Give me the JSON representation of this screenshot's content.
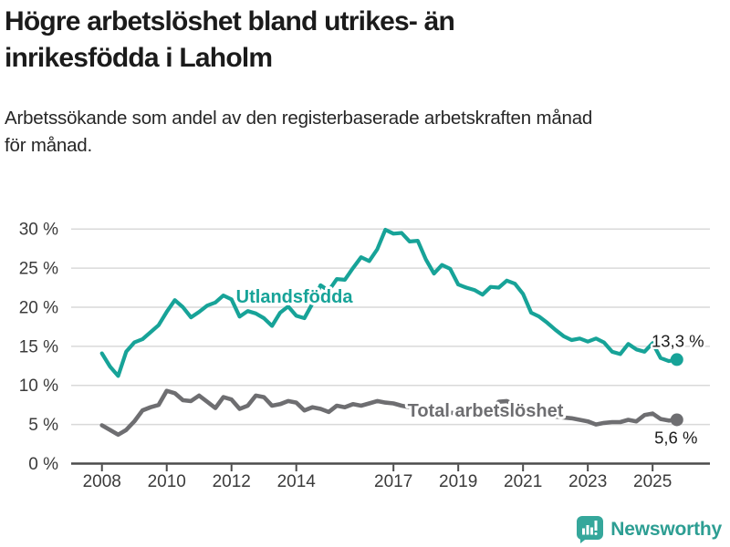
{
  "header": {
    "title_lines": [
      "Högre arbetslöshet bland utrikes- än",
      "inrikesfödda i Laholm"
    ],
    "subtitle_lines": [
      "Arbetssökande som andel av den registerbaserade arbetskraften månad",
      "för månad."
    ]
  },
  "footer": {
    "brand": "Newsworthy",
    "brand_color": "#2d9e93",
    "logo_icon": "bar-chart-speech-bubble"
  },
  "chart_data": {
    "type": "line",
    "title": "Högre arbetslöshet bland utrikes- än inrikesfödda i Laholm",
    "subtitle": "Arbetssökande som andel av den registerbaserade arbetskraften månad för månad.",
    "grid": true,
    "legend": "inline-labels",
    "axis_color": "#4b4b4b",
    "grid_color": "#d9d9d9",
    "tick_label_color": "#3b3b3b",
    "annotation_color": "#1c1c1c",
    "x_axis": {
      "range": [
        2007.05,
        2026.77
      ],
      "tick_years": [
        2008,
        2010,
        2012,
        2014,
        2017,
        2019,
        2021,
        2023,
        2025
      ],
      "tick_labels": [
        "2008",
        "2010",
        "2012",
        "2014",
        "2017",
        "2019",
        "2021",
        "2023",
        "2025"
      ]
    },
    "y_axis": {
      "range": [
        0,
        31.8
      ],
      "unit": "%",
      "tick_values": [
        0,
        5,
        10,
        15,
        20,
        25,
        30
      ],
      "tick_labels": [
        "0 %",
        "5 %",
        "10 %",
        "15 %",
        "20 %",
        "25 %",
        "30 %"
      ]
    },
    "series": [
      {
        "name": "Utlandsfödda",
        "color": "#17a398",
        "stroke_width": 4.2,
        "label_at": {
          "year": 2013.94,
          "value": 21.3
        },
        "end_dot": true,
        "end_value": 13.3,
        "end_label": "13,3 %",
        "end_label_offset": [
          1,
          -14
        ],
        "points": [
          [
            2008,
            14.1
          ],
          [
            2008.25,
            12.4
          ],
          [
            2008.5,
            11.2
          ],
          [
            2008.75,
            14.3
          ],
          [
            2009,
            15.5
          ],
          [
            2009.25,
            15.9
          ],
          [
            2009.5,
            16.8
          ],
          [
            2009.75,
            17.7
          ],
          [
            2010,
            19.4
          ],
          [
            2010.25,
            20.9
          ],
          [
            2010.5,
            20.0
          ],
          [
            2010.75,
            18.7
          ],
          [
            2011,
            19.4
          ],
          [
            2011.25,
            20.2
          ],
          [
            2011.5,
            20.6
          ],
          [
            2011.75,
            21.5
          ],
          [
            2012,
            21.0
          ],
          [
            2012.25,
            18.8
          ],
          [
            2012.5,
            19.5
          ],
          [
            2012.75,
            19.2
          ],
          [
            2013,
            18.6
          ],
          [
            2013.25,
            17.6
          ],
          [
            2013.5,
            19.3
          ],
          [
            2013.75,
            20.1
          ],
          [
            2014,
            18.9
          ],
          [
            2014.25,
            18.6
          ],
          [
            2014.5,
            20.5
          ],
          [
            2014.75,
            22.8
          ],
          [
            2015,
            22.1
          ],
          [
            2015.25,
            23.6
          ],
          [
            2015.5,
            23.5
          ],
          [
            2015.75,
            25.0
          ],
          [
            2016,
            26.4
          ],
          [
            2016.25,
            25.9
          ],
          [
            2016.5,
            27.4
          ],
          [
            2016.75,
            29.9
          ],
          [
            2017,
            29.4
          ],
          [
            2017.25,
            29.5
          ],
          [
            2017.5,
            28.4
          ],
          [
            2017.75,
            28.5
          ],
          [
            2018,
            26.1
          ],
          [
            2018.25,
            24.3
          ],
          [
            2018.5,
            25.4
          ],
          [
            2018.75,
            24.9
          ],
          [
            2019,
            22.9
          ],
          [
            2019.25,
            22.5
          ],
          [
            2019.5,
            22.2
          ],
          [
            2019.75,
            21.6
          ],
          [
            2020,
            22.6
          ],
          [
            2020.25,
            22.5
          ],
          [
            2020.5,
            23.4
          ],
          [
            2020.75,
            23.0
          ],
          [
            2021,
            21.7
          ],
          [
            2021.25,
            19.3
          ],
          [
            2021.5,
            18.8
          ],
          [
            2021.75,
            18.0
          ],
          [
            2022,
            17.1
          ],
          [
            2022.25,
            16.3
          ],
          [
            2022.5,
            15.8
          ],
          [
            2022.75,
            16.0
          ],
          [
            2023,
            15.6
          ],
          [
            2023.25,
            16.0
          ],
          [
            2023.5,
            15.5
          ],
          [
            2023.75,
            14.3
          ],
          [
            2024,
            14.0
          ],
          [
            2024.25,
            15.3
          ],
          [
            2024.5,
            14.6
          ],
          [
            2024.75,
            14.3
          ],
          [
            2025,
            15.4
          ],
          [
            2025.25,
            13.5
          ],
          [
            2025.5,
            13.1
          ],
          [
            2025.75,
            13.3
          ]
        ]
      },
      {
        "name": "Total arbetslöshet",
        "color": "#6e6e71",
        "stroke_width": 4.6,
        "label_at": {
          "year": 2019.84,
          "value": 6.7
        },
        "end_dot": true,
        "end_value": 5.6,
        "end_label": "5,6 %",
        "end_label_offset": [
          -1,
          26
        ],
        "points": [
          [
            2008,
            4.9
          ],
          [
            2008.25,
            4.3
          ],
          [
            2008.5,
            3.7
          ],
          [
            2008.75,
            4.3
          ],
          [
            2009,
            5.4
          ],
          [
            2009.25,
            6.8
          ],
          [
            2009.5,
            7.2
          ],
          [
            2009.75,
            7.5
          ],
          [
            2010,
            9.3
          ],
          [
            2010.25,
            9.0
          ],
          [
            2010.5,
            8.1
          ],
          [
            2010.75,
            8.0
          ],
          [
            2011,
            8.7
          ],
          [
            2011.25,
            7.9
          ],
          [
            2011.5,
            7.1
          ],
          [
            2011.75,
            8.5
          ],
          [
            2012,
            8.2
          ],
          [
            2012.25,
            7.0
          ],
          [
            2012.5,
            7.4
          ],
          [
            2012.75,
            8.7
          ],
          [
            2013,
            8.5
          ],
          [
            2013.25,
            7.4
          ],
          [
            2013.5,
            7.6
          ],
          [
            2013.75,
            8.0
          ],
          [
            2014,
            7.8
          ],
          [
            2014.25,
            6.8
          ],
          [
            2014.5,
            7.2
          ],
          [
            2014.75,
            7.0
          ],
          [
            2015,
            6.6
          ],
          [
            2015.25,
            7.4
          ],
          [
            2015.5,
            7.2
          ],
          [
            2015.75,
            7.6
          ],
          [
            2016,
            7.4
          ],
          [
            2016.25,
            7.7
          ],
          [
            2016.5,
            8.0
          ],
          [
            2016.75,
            7.8
          ],
          [
            2017,
            7.7
          ],
          [
            2017.25,
            7.4
          ],
          [
            2017.5,
            7.2
          ],
          [
            2017.75,
            7.1
          ],
          [
            2018,
            6.9
          ],
          [
            2018.25,
            6.8
          ],
          [
            2018.5,
            6.7
          ],
          [
            2018.75,
            6.5
          ],
          [
            2019,
            6.4
          ],
          [
            2019.25,
            6.3
          ],
          [
            2019.5,
            6.4
          ],
          [
            2019.75,
            6.6
          ],
          [
            2020,
            7.0
          ],
          [
            2020.25,
            7.9
          ],
          [
            2020.5,
            8.0
          ],
          [
            2020.75,
            7.5
          ],
          [
            2021,
            7.1
          ],
          [
            2021.25,
            6.8
          ],
          [
            2021.5,
            6.4
          ],
          [
            2021.75,
            6.1
          ],
          [
            2022,
            6.0
          ],
          [
            2022.25,
            5.9
          ],
          [
            2022.5,
            5.8
          ],
          [
            2022.75,
            5.6
          ],
          [
            2023,
            5.4
          ],
          [
            2023.25,
            5.0
          ],
          [
            2023.5,
            5.2
          ],
          [
            2023.75,
            5.3
          ],
          [
            2024,
            5.3
          ],
          [
            2024.25,
            5.6
          ],
          [
            2024.5,
            5.4
          ],
          [
            2024.75,
            6.2
          ],
          [
            2025,
            6.4
          ],
          [
            2025.25,
            5.7
          ],
          [
            2025.5,
            5.5
          ],
          [
            2025.75,
            5.6
          ]
        ]
      }
    ]
  }
}
